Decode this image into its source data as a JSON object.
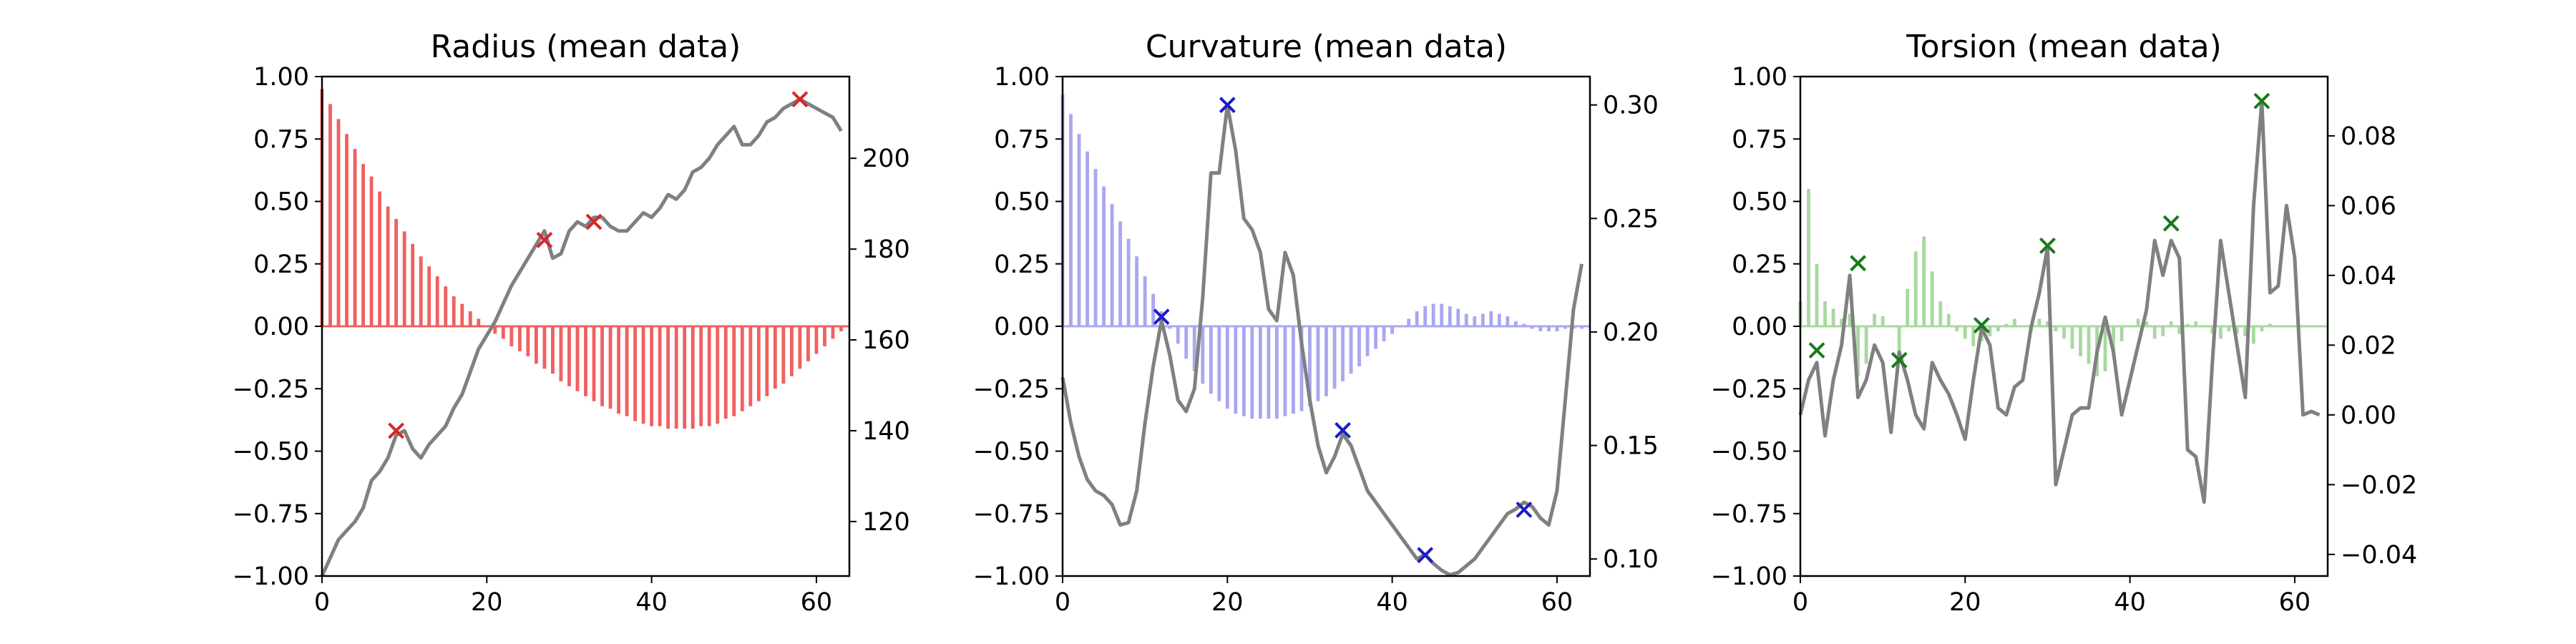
{
  "chart_data": [
    {
      "type": "bar+line",
      "title": "Radius (mean data)",
      "bar_color": "#f06060",
      "marker_color": "#d62728",
      "line_color": "#808080",
      "xlim": [
        0,
        64
      ],
      "ylim_left": [
        -1.0,
        1.0
      ],
      "ylim_right": [
        108,
        218
      ],
      "x_ticks": [
        "0",
        "20",
        "40",
        "60"
      ],
      "y_left_ticks": [
        "1.00",
        "0.75",
        "0.50",
        "0.25",
        "0.00",
        "−0.25",
        "−0.50",
        "−0.75",
        "−1.00"
      ],
      "y_right_ticks": [
        "120",
        "140",
        "160",
        "180",
        "200"
      ],
      "bars": [
        0.95,
        0.89,
        0.83,
        0.77,
        0.71,
        0.65,
        0.6,
        0.54,
        0.48,
        0.43,
        0.38,
        0.33,
        0.28,
        0.24,
        0.2,
        0.16,
        0.12,
        0.09,
        0.06,
        0.03,
        0.0,
        -0.03,
        -0.05,
        -0.08,
        -0.1,
        -0.12,
        -0.15,
        -0.17,
        -0.19,
        -0.22,
        -0.24,
        -0.26,
        -0.28,
        -0.3,
        -0.32,
        -0.33,
        -0.35,
        -0.36,
        -0.38,
        -0.39,
        -0.4,
        -0.4,
        -0.41,
        -0.41,
        -0.41,
        -0.41,
        -0.4,
        -0.4,
        -0.39,
        -0.37,
        -0.36,
        -0.34,
        -0.32,
        -0.3,
        -0.28,
        -0.25,
        -0.23,
        -0.2,
        -0.17,
        -0.14,
        -0.11,
        -0.08,
        -0.05,
        -0.02
      ],
      "line": [
        108,
        112,
        116,
        118,
        120,
        123,
        129,
        131,
        134,
        139,
        140,
        136,
        134,
        137,
        139,
        141,
        145,
        148,
        153,
        158,
        161,
        164,
        168,
        172,
        175,
        178,
        181,
        184,
        178,
        179,
        184,
        186,
        185,
        187,
        187,
        185,
        184,
        184,
        186,
        188,
        187,
        189,
        192,
        191,
        193,
        197,
        198,
        200,
        203,
        205,
        207,
        203,
        203,
        205,
        208,
        209,
        211,
        212,
        213,
        212,
        211,
        210,
        209,
        206
      ],
      "markers": [
        {
          "x": 9,
          "y": 140
        },
        {
          "x": 27,
          "y": 182
        },
        {
          "x": 33,
          "y": 186
        },
        {
          "x": 58,
          "y": 213
        }
      ]
    },
    {
      "type": "bar+line",
      "title": "Curvature (mean data)",
      "bar_color": "#a8a8f0",
      "marker_color": "#1c1cc8",
      "line_color": "#808080",
      "xlim": [
        0,
        64
      ],
      "ylim_left": [
        -1.0,
        1.0
      ],
      "ylim_right": [
        0.0925,
        0.3125
      ],
      "x_ticks": [
        "0",
        "20",
        "40",
        "60"
      ],
      "y_left_ticks": [
        "1.00",
        "0.75",
        "0.50",
        "0.25",
        "0.00",
        "−0.25",
        "−0.50",
        "−0.75",
        "−1.00"
      ],
      "y_right_ticks": [
        "0.30",
        "0.25",
        "0.20",
        "0.15",
        "0.10"
      ],
      "bars": [
        0.93,
        0.85,
        0.77,
        0.7,
        0.63,
        0.56,
        0.49,
        0.42,
        0.35,
        0.28,
        0.2,
        0.13,
        0.06,
        -0.01,
        -0.07,
        -0.13,
        -0.18,
        -0.23,
        -0.27,
        -0.3,
        -0.33,
        -0.35,
        -0.36,
        -0.37,
        -0.37,
        -0.37,
        -0.37,
        -0.36,
        -0.35,
        -0.34,
        -0.32,
        -0.3,
        -0.28,
        -0.25,
        -0.22,
        -0.19,
        -0.16,
        -0.12,
        -0.09,
        -0.06,
        -0.03,
        0.0,
        0.03,
        0.06,
        0.08,
        0.09,
        0.09,
        0.08,
        0.07,
        0.05,
        0.04,
        0.05,
        0.06,
        0.05,
        0.04,
        0.02,
        0.01,
        -0.01,
        -0.02,
        -0.02,
        -0.02,
        -0.01,
        -0.01,
        -0.01
      ],
      "line": [
        0.18,
        0.16,
        0.145,
        0.135,
        0.13,
        0.128,
        0.124,
        0.115,
        0.116,
        0.13,
        0.16,
        0.185,
        0.205,
        0.19,
        0.17,
        0.165,
        0.175,
        0.215,
        0.27,
        0.27,
        0.3,
        0.28,
        0.25,
        0.245,
        0.235,
        0.21,
        0.205,
        0.235,
        0.225,
        0.195,
        0.17,
        0.15,
        0.138,
        0.145,
        0.155,
        0.15,
        0.14,
        0.13,
        0.125,
        0.12,
        0.115,
        0.11,
        0.105,
        0.1,
        0.102,
        0.098,
        0.095,
        0.093,
        0.094,
        0.097,
        0.1,
        0.105,
        0.11,
        0.115,
        0.12,
        0.122,
        0.125,
        0.123,
        0.118,
        0.115,
        0.13,
        0.17,
        0.21,
        0.23
      ],
      "markers": [
        {
          "x": 12,
          "y": 0.2067
        },
        {
          "x": 20,
          "y": 0.3
        },
        {
          "x": 34,
          "y": 0.1567
        },
        {
          "x": 44,
          "y": 0.1017
        },
        {
          "x": 56,
          "y": 0.1217
        }
      ]
    },
    {
      "type": "bar+line",
      "title": "Torsion (mean data)",
      "bar_color": "#a8d8a0",
      "marker_color": "#1a7a1a",
      "line_color": "#808080",
      "xlim": [
        0,
        64
      ],
      "ylim_left": [
        -1.0,
        1.0
      ],
      "ylim_right": [
        -0.0462,
        0.097
      ],
      "x_ticks": [
        "0",
        "20",
        "40",
        "60"
      ],
      "y_left_ticks": [
        "1.00",
        "0.75",
        "0.50",
        "0.25",
        "0.00",
        "−0.25",
        "−0.50",
        "−0.75",
        "−1.00"
      ],
      "y_right_ticks": [
        "0.08",
        "0.06",
        "0.04",
        "0.02",
        "0.00",
        "−0.02",
        "−0.04"
      ],
      "bars": [
        0.1,
        0.55,
        0.25,
        0.1,
        0.07,
        0.03,
        0.05,
        -0.2,
        -0.15,
        0.05,
        0.04,
        0.0,
        -0.14,
        0.15,
        0.3,
        0.36,
        0.22,
        0.1,
        0.05,
        -0.02,
        -0.05,
        -0.08,
        -0.06,
        -0.04,
        -0.02,
        0.01,
        0.03,
        0.0,
        -0.02,
        0.03,
        0.02,
        -0.02,
        -0.05,
        -0.09,
        -0.12,
        -0.15,
        -0.2,
        -0.18,
        -0.12,
        -0.06,
        0.0,
        0.03,
        0.02,
        -0.05,
        -0.04,
        0.02,
        -0.03,
        0.01,
        0.02,
        0.0,
        -0.03,
        -0.05,
        -0.02,
        -0.03,
        -0.04,
        -0.07,
        -0.02,
        0.01,
        0.0,
        0.0,
        0.0,
        0.0,
        0.0,
        0.0
      ],
      "line": [
        0.0,
        0.01,
        0.015,
        -0.006,
        0.01,
        0.02,
        0.04,
        0.005,
        0.01,
        0.02,
        0.015,
        -0.005,
        0.018,
        0.01,
        0.0,
        -0.004,
        0.015,
        0.01,
        0.006,
        0.0,
        -0.007,
        0.01,
        0.025,
        0.02,
        0.002,
        0.0,
        0.008,
        0.01,
        0.025,
        0.035,
        0.048,
        -0.02,
        -0.01,
        0.0,
        0.002,
        0.002,
        0.018,
        0.028,
        0.018,
        0.0,
        0.01,
        0.02,
        0.03,
        0.05,
        0.04,
        0.05,
        0.045,
        -0.01,
        -0.012,
        -0.025,
        0.015,
        0.05,
        0.035,
        0.02,
        0.005,
        0.06,
        0.09,
        0.035,
        0.037,
        0.06,
        0.045,
        0.0,
        0.001,
        0.0
      ],
      "markers": [
        {
          "x": 2,
          "y": 0.0185
        },
        {
          "x": 7,
          "y": 0.0435
        },
        {
          "x": 12,
          "y": 0.0157
        },
        {
          "x": 22,
          "y": 0.0257
        },
        {
          "x": 30,
          "y": 0.0485
        },
        {
          "x": 45,
          "y": 0.0549
        },
        {
          "x": 56,
          "y": 0.09
        }
      ]
    }
  ]
}
